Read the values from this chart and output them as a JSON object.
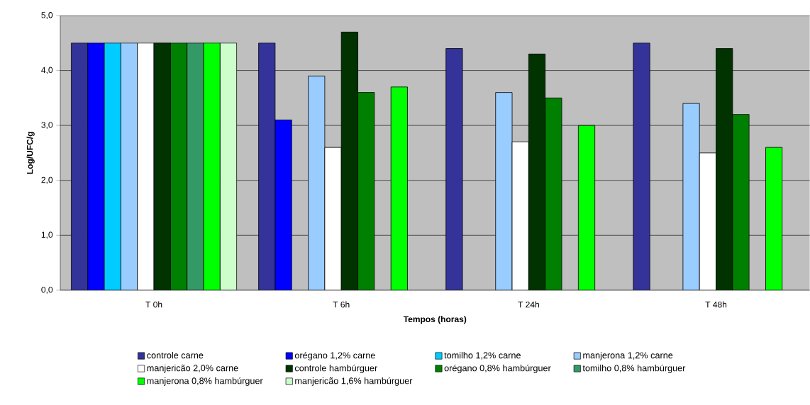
{
  "chart_data": {
    "type": "bar",
    "xlabel": "Tempos (horas)",
    "ylabel": "Log/UFC/g",
    "categories": [
      "T 0h",
      "T 6h",
      "T 24h",
      "T 48h"
    ],
    "series": [
      {
        "name": "controle carne",
        "color": "#333399",
        "values": [
          4.5,
          4.5,
          4.4,
          4.5
        ]
      },
      {
        "name": "orégano 1,2% carne",
        "color": "#0000ff",
        "values": [
          4.5,
          3.1,
          null,
          null
        ]
      },
      {
        "name": "tomilho 1,2% carne",
        "color": "#00ccff",
        "values": [
          4.5,
          null,
          null,
          null
        ]
      },
      {
        "name": "manjerona 1,2% carne",
        "color": "#99ccff",
        "values": [
          4.5,
          3.9,
          3.6,
          3.4
        ]
      },
      {
        "name": "manjericão 2,0% carne",
        "color": "#ffffff",
        "values": [
          4.5,
          2.6,
          2.7,
          2.5
        ]
      },
      {
        "name": "controle hambúrguer",
        "color": "#003300",
        "values": [
          4.5,
          4.7,
          4.3,
          4.4
        ]
      },
      {
        "name": "orégano 0,8% hambúrguer",
        "color": "#008000",
        "values": [
          4.5,
          3.6,
          3.5,
          3.2
        ]
      },
      {
        "name": "tomilho 0,8% hambúrguer",
        "color": "#339966",
        "values": [
          4.5,
          null,
          null,
          null
        ]
      },
      {
        "name": "manjerona 0,8% hambúrguer",
        "color": "#00ff00",
        "values": [
          4.5,
          3.7,
          3.0,
          2.6
        ]
      },
      {
        "name": "manjericão 1,6% hambúrguer",
        "color": "#ccffcc",
        "values": [
          4.5,
          null,
          null,
          null
        ]
      }
    ],
    "ylim": [
      0,
      5
    ],
    "yticks": [
      {
        "value": 0,
        "label": "0,0"
      },
      {
        "value": 1,
        "label": "1,0"
      },
      {
        "value": 2,
        "label": "2,0"
      },
      {
        "value": 3,
        "label": "3,0"
      },
      {
        "value": 4,
        "label": "4,0"
      },
      {
        "value": 5,
        "label": "5,0"
      }
    ],
    "grid": "y",
    "legend": "bottom"
  }
}
